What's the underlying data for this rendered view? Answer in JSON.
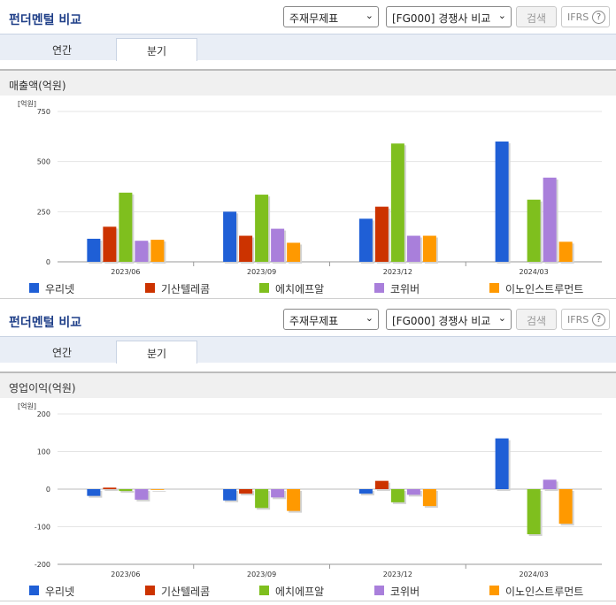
{
  "panels": [
    {
      "title": "펀더멘털 비교",
      "select1": "주재무제표",
      "select2": "[FG000] 경쟁사 비교",
      "search_label": "검색",
      "ifrs_label": "IFRS",
      "help_label": "?",
      "tabs": [
        "연간",
        "분기"
      ],
      "active_tab": "분기",
      "chart_title": "매출액(억원)",
      "unit_label": "[억원]"
    },
    {
      "title": "펀더멘털 비교",
      "select1": "주재무제표",
      "select2": "[FG000] 경쟁사 비교",
      "search_label": "검색",
      "ifrs_label": "IFRS",
      "help_label": "?",
      "tabs": [
        "연간",
        "분기"
      ],
      "active_tab": "분기",
      "chart_title": "영업이익(억원)",
      "unit_label": "[억원]"
    }
  ],
  "chart_data": [
    {
      "type": "bar",
      "title": "매출액(억원)",
      "categories": [
        "2023/06",
        "2023/09",
        "2023/12",
        "2024/03"
      ],
      "ylim": [
        0,
        750
      ],
      "yticks": [
        0,
        250,
        500,
        750
      ],
      "legend_position": "bottom",
      "series": [
        {
          "name": "우리넷",
          "color": "#1f5fd6",
          "values": [
            115,
            250,
            215,
            600
          ]
        },
        {
          "name": "기산텔레콤",
          "color": "#cc3300",
          "values": [
            175,
            130,
            275,
            null
          ]
        },
        {
          "name": "에치에프알",
          "color": "#7fbf1e",
          "values": [
            345,
            335,
            590,
            310
          ]
        },
        {
          "name": "코위버",
          "color": "#a97fdb",
          "values": [
            105,
            165,
            130,
            420
          ]
        },
        {
          "name": "이노인스트루먼트",
          "color": "#ff9900",
          "values": [
            110,
            95,
            130,
            100
          ]
        }
      ]
    },
    {
      "type": "bar",
      "title": "영업이익(억원)",
      "categories": [
        "2023/06",
        "2023/09",
        "2023/12",
        "2024/03"
      ],
      "ylim": [
        -200,
        200
      ],
      "yticks": [
        -200,
        -100,
        0,
        100,
        200
      ],
      "legend_position": "bottom",
      "series": [
        {
          "name": "우리넷",
          "color": "#1f5fd6",
          "values": [
            -18,
            -30,
            -12,
            135
          ]
        },
        {
          "name": "기산텔레콤",
          "color": "#cc3300",
          "values": [
            4,
            -12,
            22,
            null
          ]
        },
        {
          "name": "에치에프알",
          "color": "#7fbf1e",
          "values": [
            -5,
            -50,
            -35,
            -120
          ]
        },
        {
          "name": "코위버",
          "color": "#a97fdb",
          "values": [
            -28,
            -22,
            -15,
            25
          ]
        },
        {
          "name": "이노인스트루먼트",
          "color": "#ff9900",
          "values": [
            -2,
            -58,
            -45,
            -92
          ]
        }
      ]
    }
  ]
}
